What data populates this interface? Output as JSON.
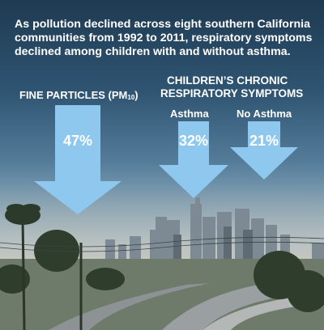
{
  "headline": "As pollution declined across eight southern California communities from 1992 to 2011, respiratory symptoms declined among children with and without asthma.",
  "fine_particles": {
    "label_main": "FINE PARTICLES (PM",
    "label_sub": "10",
    "label_end": ")",
    "decline": "47%"
  },
  "chronic": {
    "heading_line1": "CHILDREN’S CHRONIC",
    "heading_line2": "RESPIRATORY SYMPTOMS",
    "asthma_label": "Asthma",
    "asthma_decline": "32%",
    "no_asthma_label": "No Asthma",
    "no_asthma_decline": "21%"
  },
  "colors": {
    "arrow": "#8ec8ee",
    "text": "#ffffff"
  },
  "background_image": "los-angeles-skyline-freeway-photo"
}
